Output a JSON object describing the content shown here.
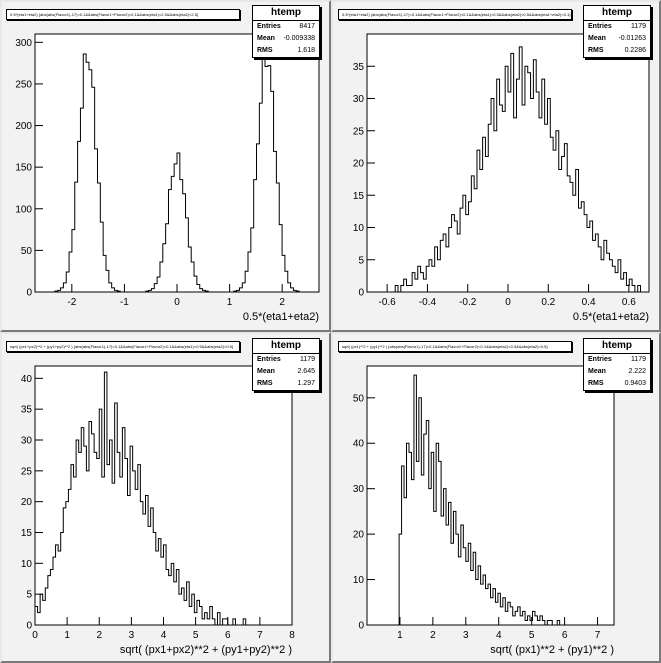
{
  "chart_data": [
    {
      "type": "histogram",
      "title": "0.5*(eta1+eta2) {abs(abs(Flavor1)-17)<0.1&&abs(Flavor1+Flavor2)<0.1&&abs(eta1)<2.5&&abs(eta2)<2.5}",
      "xlabel": "0.5*(eta1+eta2)",
      "ylabel": "",
      "xlim": [
        -2.7,
        2.7
      ],
      "ylim": [
        0,
        310
      ],
      "xticks": [
        -2,
        -1,
        0,
        1,
        2
      ],
      "yticks": [
        0,
        50,
        100,
        150,
        200,
        250,
        300
      ],
      "stats": {
        "name": "htemp",
        "entries": "8417",
        "mean": "-0.009338",
        "rms": "1.618"
      },
      "bins": {
        "x_start": -2.7,
        "x_end": 2.7,
        "n": 100,
        "peaks": [
          {
            "center": -1.7,
            "amplitude": 285,
            "sigma": 0.17
          },
          {
            "center": 0.0,
            "amplitude": 160,
            "sigma": 0.17
          },
          {
            "center": 1.7,
            "amplitude": 285,
            "sigma": 0.17
          }
        ]
      }
    },
    {
      "type": "histogram",
      "title": "0.5*(eta1+eta2) {abs(abs(Flavor1)-17)<0.1&&abs(Flavor1+Flavor2)<0.1&&abs(eta1)<0.5&&abs(eta2)<0.5&&abs(eta1+eta2)<0.1}",
      "xlabel": "0.5*(eta1+eta2)",
      "ylabel": "",
      "xlim": [
        -0.7,
        0.7
      ],
      "ylim": [
        0,
        40
      ],
      "xticks": [
        -0.6,
        -0.4,
        -0.2,
        0,
        0.2,
        0.4,
        0.6
      ],
      "yticks": [
        0,
        5,
        10,
        15,
        20,
        25,
        30,
        35
      ],
      "stats": {
        "name": "htemp",
        "entries": "1179",
        "mean": "-0.01263",
        "rms": "0.2286"
      },
      "values": [
        0,
        0,
        0,
        0,
        0,
        0,
        0,
        0,
        0,
        0,
        1,
        0,
        1,
        2,
        1,
        1,
        3,
        2,
        4,
        3,
        2,
        4,
        5,
        4,
        7,
        5,
        8,
        9,
        7,
        10,
        12,
        11,
        9,
        13,
        15,
        12,
        14,
        18,
        16,
        22,
        19,
        24,
        21,
        26,
        30,
        25,
        33,
        29,
        28,
        35,
        31,
        37,
        27,
        33,
        38,
        29,
        35,
        34,
        30,
        36,
        31,
        27,
        33,
        26,
        30,
        24,
        22,
        25,
        19,
        21,
        23,
        18,
        17,
        15,
        19,
        13,
        14,
        12,
        10,
        11,
        8,
        9,
        7,
        5,
        8,
        6,
        5,
        4,
        3,
        5,
        2,
        3,
        1,
        2,
        1,
        0,
        1,
        0,
        0,
        0
      ]
    },
    {
      "type": "histogram",
      "title": "sqrt( (px1+px2)**2 + (py1+py2)**2 ) {abs(abs(Flavor1)-17)<0.1&&abs(Flavor1+Flavor2)<0.1&&abs(eta1)<0.5&&abs(eta2)<0.5}",
      "xlabel": "sqrt( (px1+px2)**2 + (py1+py2)**2 )",
      "ylabel": "",
      "xlim": [
        0,
        8
      ],
      "ylim": [
        0,
        42
      ],
      "xticks": [
        0,
        1,
        2,
        3,
        4,
        5,
        6,
        7,
        8
      ],
      "yticks": [
        0,
        5,
        10,
        15,
        20,
        25,
        30,
        35,
        40
      ],
      "stats": {
        "name": "htemp",
        "entries": "1179",
        "mean": "2.645",
        "rms": "1.297"
      },
      "values": [
        3,
        2,
        5,
        4,
        6,
        8,
        9,
        11,
        13,
        12,
        15,
        19,
        20,
        22,
        26,
        24,
        30,
        28,
        32,
        29,
        25,
        33,
        31,
        28,
        27,
        35,
        24,
        41,
        26,
        30,
        23,
        36,
        28,
        24,
        32,
        27,
        21,
        29,
        25,
        22,
        26,
        20,
        18,
        21,
        16,
        19,
        15,
        12,
        14,
        11,
        13,
        9,
        8,
        10,
        7,
        9,
        5,
        6,
        4,
        7,
        3,
        5,
        2,
        4,
        3,
        1,
        2,
        1,
        3,
        1,
        0,
        2,
        0,
        1,
        1,
        0,
        0,
        1,
        0,
        0,
        0,
        1,
        0,
        0,
        0,
        0,
        0,
        0,
        0,
        0,
        0,
        0,
        0,
        0,
        0,
        0,
        0,
        0,
        0,
        0
      ]
    },
    {
      "type": "histogram",
      "title": "sqrt( (px1)**2 + (py1)**2 ) {abs(abs(Flavor1)-17)<0.1&&abs(Flavor1+Flavor2)<0.1&&abs(eta1)<0.5&&abs(eta2)<0.5}",
      "xlabel": "sqrt( (px1)**2 + (py1)**2 )",
      "ylabel": "",
      "xlim": [
        0,
        7.5
      ],
      "ylim": [
        0,
        57
      ],
      "xticks": [
        1,
        2,
        3,
        4,
        5,
        6,
        7
      ],
      "yticks": [
        0,
        10,
        20,
        30,
        40,
        50
      ],
      "stats": {
        "name": "htemp",
        "entries": "1179",
        "mean": "2.222",
        "rms": "0.9403"
      },
      "values": [
        0,
        0,
        0,
        0,
        0,
        0,
        0,
        0,
        0,
        0,
        0,
        0,
        0,
        20,
        35,
        28,
        40,
        38,
        32,
        55,
        36,
        50,
        33,
        42,
        45,
        30,
        38,
        25,
        40,
        36,
        24,
        30,
        22,
        27,
        18,
        25,
        20,
        15,
        22,
        17,
        14,
        18,
        12,
        16,
        10,
        13,
        9,
        11,
        8,
        9,
        6,
        8,
        5,
        7,
        4,
        6,
        3,
        5,
        4,
        2,
        3,
        4,
        2,
        3,
        1,
        2,
        1,
        3,
        2,
        1,
        2,
        1,
        0,
        1,
        1,
        0,
        0,
        1,
        0,
        0,
        0,
        0,
        0,
        0,
        0,
        0,
        0,
        0,
        0,
        0,
        0,
        0,
        0,
        0,
        0,
        0,
        0,
        0,
        0,
        0
      ]
    }
  ]
}
